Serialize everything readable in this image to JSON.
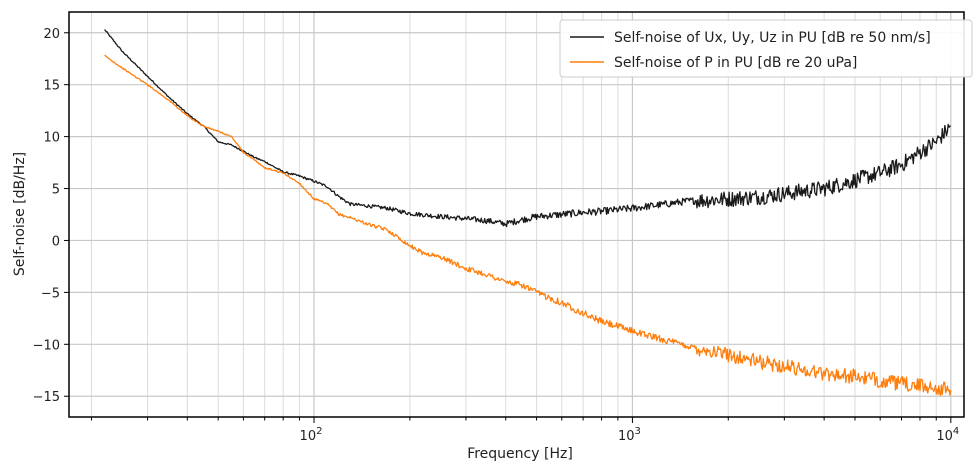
{
  "chart_data": {
    "type": "line",
    "xlabel": "Frequency [Hz]",
    "ylabel": "Self-noise [dB/Hz]",
    "x_scale": "log",
    "xlim": [
      17,
      11000
    ],
    "ylim": [
      -17,
      22
    ],
    "grid": true,
    "legend_position": "top-right",
    "x_tick_labels": [
      {
        "value": 100,
        "base": "10",
        "exp": "2"
      },
      {
        "value": 1000,
        "base": "10",
        "exp": "3"
      },
      {
        "value": 10000,
        "base": "10",
        "exp": "4"
      }
    ],
    "y_ticks": [
      20,
      15,
      10,
      5,
      0,
      -5,
      -10,
      -15
    ],
    "y_tick_labels": [
      "20",
      "15",
      "10",
      "5",
      "0",
      "−5",
      "−10",
      "−15"
    ],
    "series": [
      {
        "name": "Self-noise of Ux, Uy, Uz in PU [dB re 50 nm/s]",
        "color": "#1a1a1a",
        "x": [
          22,
          25,
          30,
          35,
          40,
          45,
          50,
          55,
          60,
          65,
          70,
          80,
          90,
          100,
          110,
          120,
          130,
          150,
          170,
          200,
          250,
          300,
          350,
          400,
          450,
          500,
          600,
          700,
          800,
          1000,
          1200,
          1500,
          2000,
          2500,
          3000,
          4000,
          5000,
          6000,
          7000,
          8000,
          9000,
          10000
        ],
        "y": [
          20.3,
          18.2,
          15.8,
          13.8,
          12.2,
          11.0,
          9.5,
          9.2,
          8.6,
          8.0,
          7.6,
          6.6,
          6.2,
          5.7,
          5.2,
          4.2,
          3.5,
          3.3,
          3.1,
          2.6,
          2.3,
          2.1,
          1.9,
          1.6,
          2.0,
          2.3,
          2.5,
          2.7,
          2.8,
          3.1,
          3.4,
          3.8,
          4.0,
          4.2,
          4.5,
          5.0,
          5.8,
          6.5,
          7.3,
          8.5,
          9.5,
          11.0
        ]
      },
      {
        "name": "Self-noise of P in PU [dB re 20 uPa]",
        "color": "#ff7f0e",
        "x": [
          22,
          25,
          30,
          35,
          40,
          45,
          50,
          55,
          60,
          70,
          80,
          90,
          100,
          110,
          120,
          130,
          150,
          170,
          200,
          220,
          250,
          300,
          350,
          400,
          450,
          500,
          600,
          700,
          800,
          1000,
          1200,
          1500,
          2000,
          2500,
          3000,
          4000,
          5000,
          6000,
          7000,
          8000,
          9000,
          10000
        ],
        "y": [
          17.8,
          16.6,
          15.0,
          13.5,
          12.0,
          11.0,
          10.5,
          10.0,
          8.5,
          7.0,
          6.5,
          5.5,
          4.0,
          3.5,
          2.5,
          2.2,
          1.5,
          1.0,
          -0.5,
          -1.2,
          -1.6,
          -2.7,
          -3.3,
          -4.0,
          -4.3,
          -5.0,
          -6.0,
          -7.0,
          -7.8,
          -8.7,
          -9.4,
          -10.2,
          -11.0,
          -11.7,
          -12.1,
          -12.8,
          -13.1,
          -13.5,
          -13.8,
          -14.0,
          -14.2,
          -14.4
        ]
      }
    ]
  }
}
